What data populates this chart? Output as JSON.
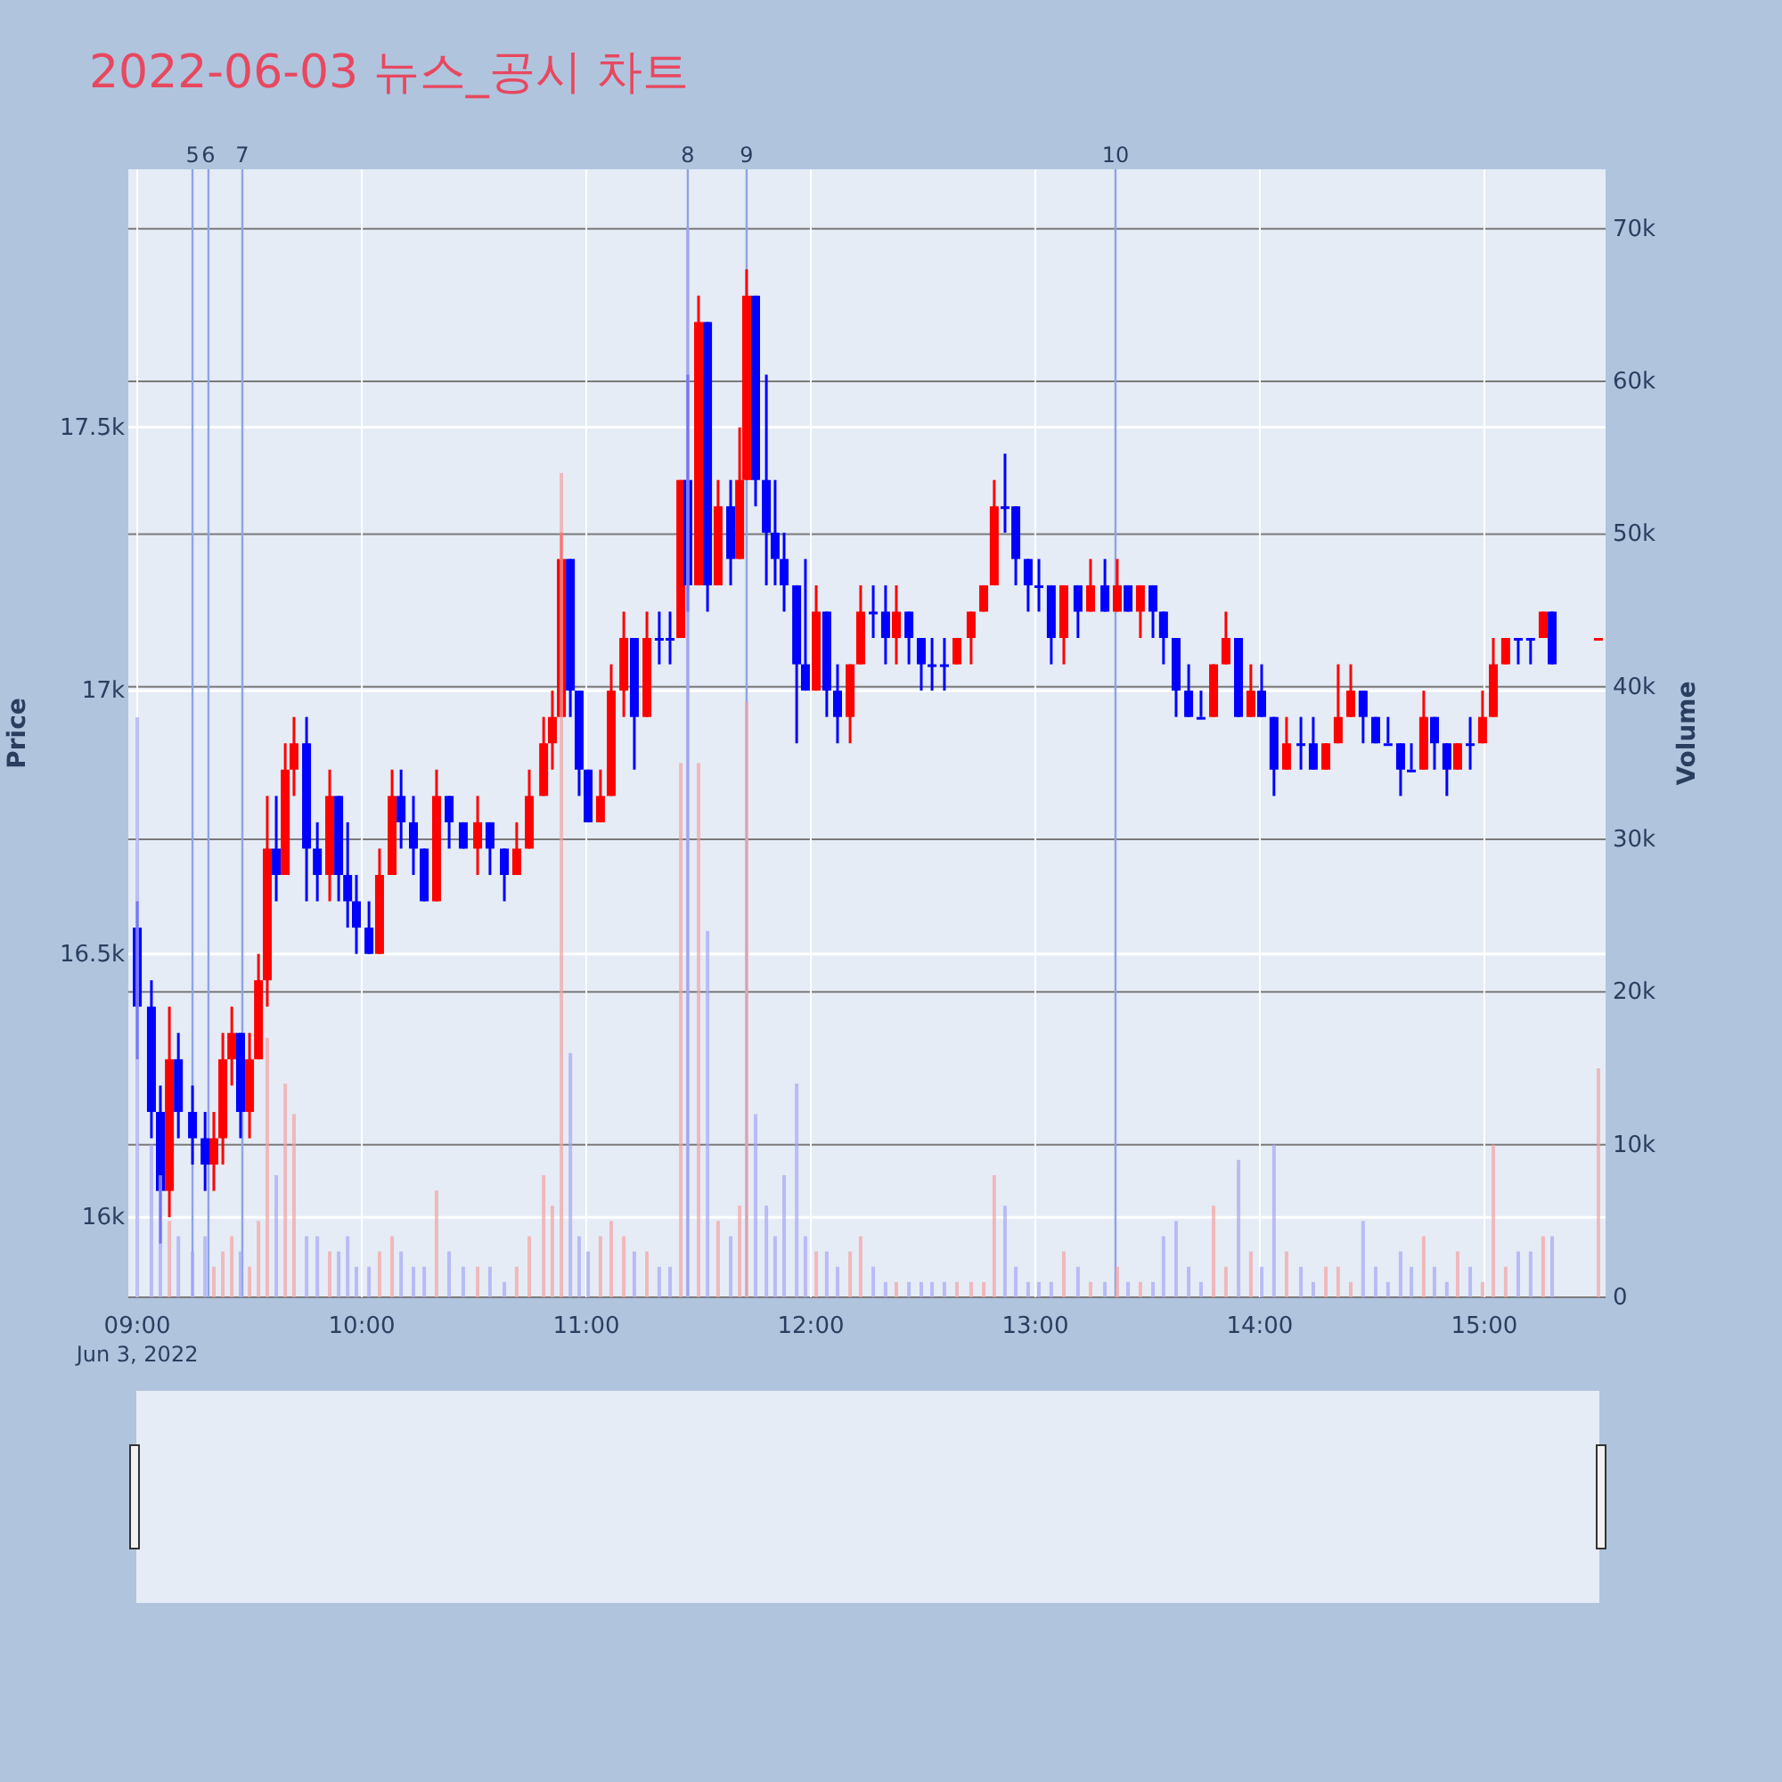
{
  "chart_data": {
    "type": "candlestick",
    "title": "2022-06-03 뉴스_공시 차트",
    "ylabel": "Price",
    "y2label": "Volume",
    "xlim": [
      8.96,
      15.54
    ],
    "xticks": [
      {
        "value": 9,
        "label": "09:00\nJun 3, 2022"
      },
      {
        "value": 10,
        "label": "10:00"
      },
      {
        "value": 11,
        "label": "11:00"
      },
      {
        "value": 12,
        "label": "12:00"
      },
      {
        "value": 13,
        "label": "13:00"
      },
      {
        "value": 14,
        "label": "14:00"
      },
      {
        "value": 15,
        "label": "15:00"
      }
    ],
    "ylim": [
      15848,
      17990
    ],
    "yticks": [
      {
        "value": 16000,
        "label": "16k"
      },
      {
        "value": 16500,
        "label": "16.5k"
      },
      {
        "value": 17000,
        "label": "17k"
      },
      {
        "value": 17500,
        "label": "17.5k"
      }
    ],
    "y2lim": [
      0,
      73900
    ],
    "y2ticks": [
      0,
      {
        "value": 10000,
        "label": "10k"
      },
      {
        "value": 20000,
        "label": "20k"
      },
      {
        "value": 30000,
        "label": "30k"
      },
      {
        "value": 40000,
        "label": "40k"
      },
      {
        "value": 50000,
        "label": "50k"
      },
      {
        "value": 60000,
        "label": "60k"
      },
      {
        "value": 70000,
        "label": "70k"
      }
    ],
    "grid": true,
    "ref_lines": [
      {
        "axis": "x",
        "value": 9.246,
        "color": "#8fa3e6"
      },
      {
        "axis": "x",
        "value": 9.317,
        "color": "#8fa3e6"
      },
      {
        "axis": "x",
        "value": 9.468,
        "color": "#8fa3e6"
      },
      {
        "axis": "x",
        "value": 11.452,
        "color": "#8fa3e6"
      },
      {
        "axis": "x",
        "value": 11.714,
        "color": "#8fa3e6"
      },
      {
        "axis": "x",
        "value": 13.357,
        "color": "#8fa3e6"
      }
    ],
    "annotations": [
      "5",
      "6",
      "7",
      "8",
      "9",
      "10"
    ],
    "series": [
      {
        "type": "bar",
        "axis": "y2",
        "color": "#f5a3a3",
        "x": [
          9.143,
          9.341,
          9.381,
          9.421,
          9.5,
          9.54,
          9.579,
          9.659,
          9.698,
          9.857,
          10.079,
          10.135,
          10.333,
          10.516,
          10.69,
          10.746,
          10.81,
          10.849,
          10.889,
          11.063,
          11.111,
          11.167,
          11.27,
          11.421,
          11.5,
          11.587,
          11.683,
          11.714,
          12.024,
          12.175,
          12.222,
          12.381,
          12.651,
          12.714,
          12.77,
          12.817,
          13.127,
          13.246,
          13.365,
          13.468,
          13.794,
          13.849,
          13.96,
          14.119,
          14.294,
          14.349,
          14.405,
          14.73,
          14.881,
          14.992,
          15.04,
          15.095,
          15.262,
          15.508
        ],
        "values": [
          5000,
          2000,
          3000,
          4000,
          2000,
          5000,
          17000,
          14000,
          12000,
          3000,
          3000,
          4000,
          7000,
          2000,
          2000,
          4000,
          8000,
          6000,
          54000,
          4000,
          5000,
          4000,
          3000,
          35000,
          35000,
          5000,
          6000,
          39000,
          3000,
          3000,
          4000,
          1000,
          1000,
          1000,
          1000,
          8000,
          3000,
          1000,
          2000,
          1000,
          6000,
          2000,
          3000,
          3000,
          2000,
          2000,
          1000,
          4000,
          3000,
          1000,
          10000,
          2000,
          4000,
          15000
        ]
      },
      {
        "type": "bar",
        "axis": "y2",
        "color": "#a6a6f5",
        "x": [
          9.0,
          9.063,
          9.103,
          9.183,
          9.246,
          9.302,
          9.46,
          9.619,
          9.754,
          9.802,
          9.897,
          9.937,
          9.976,
          10.032,
          10.175,
          10.23,
          10.278,
          10.389,
          10.452,
          10.571,
          10.635,
          10.929,
          10.968,
          11.008,
          11.214,
          11.325,
          11.373,
          11.452,
          11.54,
          11.643,
          11.754,
          11.802,
          11.841,
          11.881,
          11.937,
          11.976,
          12.071,
          12.119,
          12.278,
          12.333,
          12.437,
          12.492,
          12.54,
          12.595,
          12.865,
          12.913,
          12.968,
          13.016,
          13.071,
          13.19,
          13.31,
          13.413,
          13.524,
          13.571,
          13.627,
          13.683,
          13.738,
          13.905,
          14.008,
          14.063,
          14.183,
          14.238,
          14.46,
          14.516,
          14.571,
          14.627,
          14.675,
          14.778,
          14.833,
          14.937,
          15.151,
          15.206,
          15.302
        ],
        "values": [
          38000,
          10000,
          8000,
          4000,
          3000,
          4000,
          3000,
          8000,
          4000,
          4000,
          3000,
          4000,
          2000,
          2000,
          3000,
          2000,
          2000,
          3000,
          2000,
          2000,
          1000,
          16000,
          4000,
          3000,
          3000,
          2000,
          2000,
          70000,
          24000,
          4000,
          12000,
          6000,
          4000,
          8000,
          14000,
          4000,
          3000,
          2000,
          2000,
          1000,
          1000,
          1000,
          1000,
          1000,
          6000,
          2000,
          1000,
          1000,
          1000,
          2000,
          1000,
          1000,
          1000,
          4000,
          5000,
          2000,
          1000,
          9000,
          2000,
          10000,
          2000,
          1000,
          5000,
          2000,
          1000,
          3000,
          2000,
          2000,
          1000,
          2000,
          3000,
          3000,
          4000
        ]
      },
      {
        "type": "candlestick",
        "color": "#ff0000",
        "x": [
          9.143,
          9.341,
          9.381,
          9.421,
          9.5,
          9.54,
          9.579,
          9.659,
          9.698,
          9.857,
          10.079,
          10.135,
          10.333,
          10.516,
          10.69,
          10.746,
          10.81,
          10.849,
          10.889,
          11.063,
          11.111,
          11.167,
          11.27,
          11.421,
          11.5,
          11.587,
          11.683,
          11.714,
          12.024,
          12.175,
          12.222,
          12.381,
          12.651,
          12.714,
          12.77,
          12.817,
          13.127,
          13.246,
          13.365,
          13.468,
          13.794,
          13.849,
          13.96,
          14.119,
          14.294,
          14.349,
          14.405,
          14.73,
          14.881,
          14.992,
          15.04,
          15.095,
          15.262,
          15.508
        ],
        "ohlc": [
          [
            16050,
            16400,
            16000,
            16300
          ],
          [
            16100,
            16200,
            16050,
            16150
          ],
          [
            16150,
            16350,
            16100,
            16300
          ],
          [
            16300,
            16400,
            16250,
            16350
          ],
          [
            16200,
            16350,
            16150,
            16300
          ],
          [
            16300,
            16500,
            16300,
            16450
          ],
          [
            16450,
            16800,
            16400,
            16700
          ],
          [
            16650,
            16900,
            16650,
            16850
          ],
          [
            16850,
            16950,
            16800,
            16900
          ],
          [
            16650,
            16850,
            16600,
            16800
          ],
          [
            16500,
            16700,
            16500,
            16650
          ],
          [
            16650,
            16850,
            16650,
            16800
          ],
          [
            16600,
            16850,
            16600,
            16800
          ],
          [
            16700,
            16800,
            16650,
            16750
          ],
          [
            16650,
            16750,
            16650,
            16700
          ],
          [
            16700,
            16850,
            16700,
            16800
          ],
          [
            16800,
            16950,
            16800,
            16900
          ],
          [
            16900,
            17000,
            16850,
            16950
          ],
          [
            16950,
            17300,
            16950,
            17250
          ],
          [
            16750,
            16850,
            16750,
            16800
          ],
          [
            16800,
            17050,
            16800,
            17000
          ],
          [
            17000,
            17150,
            16950,
            17100
          ],
          [
            16950,
            17150,
            16950,
            17100
          ],
          [
            17100,
            17400,
            17100,
            17400
          ],
          [
            17200,
            17750,
            17200,
            17700
          ],
          [
            17200,
            17400,
            17200,
            17350
          ],
          [
            17250,
            17500,
            17250,
            17400
          ],
          [
            17400,
            17800,
            17400,
            17750
          ],
          [
            17000,
            17200,
            17000,
            17150
          ],
          [
            16950,
            17050,
            16900,
            17050
          ],
          [
            17050,
            17200,
            17050,
            17150
          ],
          [
            17100,
            17200,
            17050,
            17150
          ],
          [
            17050,
            17100,
            17050,
            17100
          ],
          [
            17100,
            17150,
            17050,
            17150
          ],
          [
            17150,
            17200,
            17150,
            17200
          ],
          [
            17200,
            17400,
            17200,
            17350
          ],
          [
            17100,
            17200,
            17050,
            17200
          ],
          [
            17150,
            17250,
            17150,
            17200
          ],
          [
            17150,
            17250,
            17150,
            17200
          ],
          [
            17150,
            17200,
            17100,
            17200
          ],
          [
            16950,
            17050,
            16950,
            17050
          ],
          [
            17050,
            17150,
            17050,
            17100
          ],
          [
            16950,
            17050,
            16950,
            17000
          ],
          [
            16850,
            16950,
            16850,
            16900
          ],
          [
            16850,
            16900,
            16850,
            16900
          ],
          [
            16900,
            17050,
            16900,
            16950
          ],
          [
            16950,
            17050,
            16950,
            17000
          ],
          [
            16850,
            17000,
            16850,
            16950
          ],
          [
            16850,
            16900,
            16850,
            16900
          ],
          [
            16900,
            17000,
            16900,
            16950
          ],
          [
            16950,
            17100,
            16950,
            17050
          ],
          [
            17050,
            17100,
            17050,
            17100
          ],
          [
            17100,
            17150,
            17100,
            17150
          ],
          [
            17100,
            17100,
            17100,
            17100
          ]
        ]
      },
      {
        "type": "candlestick",
        "color": "#0000ff",
        "x": [
          9.0,
          9.063,
          9.103,
          9.183,
          9.246,
          9.302,
          9.46,
          9.619,
          9.754,
          9.802,
          9.897,
          9.937,
          9.976,
          10.032,
          10.175,
          10.23,
          10.278,
          10.389,
          10.452,
          10.571,
          10.635,
          10.929,
          10.968,
          11.008,
          11.214,
          11.325,
          11.373,
          11.452,
          11.54,
          11.643,
          11.754,
          11.802,
          11.841,
          11.881,
          11.937,
          11.976,
          12.071,
          12.119,
          12.278,
          12.333,
          12.437,
          12.492,
          12.54,
          12.595,
          12.865,
          12.913,
          12.968,
          13.016,
          13.071,
          13.19,
          13.31,
          13.413,
          13.524,
          13.571,
          13.627,
          13.683,
          13.738,
          13.905,
          14.008,
          14.063,
          14.183,
          14.238,
          14.46,
          14.516,
          14.571,
          14.627,
          14.675,
          14.778,
          14.833,
          14.937,
          15.151,
          15.206,
          15.302
        ],
        "ohlc": [
          [
            16550,
            16600,
            16300,
            16400
          ],
          [
            16400,
            16450,
            16150,
            16200
          ],
          [
            16200,
            16250,
            15950,
            16050
          ],
          [
            16300,
            16350,
            16150,
            16200
          ],
          [
            16200,
            16250,
            16100,
            16150
          ],
          [
            16150,
            16200,
            16050,
            16100
          ],
          [
            16350,
            16350,
            16150,
            16200
          ],
          [
            16700,
            16800,
            16600,
            16650
          ],
          [
            16900,
            16950,
            16600,
            16700
          ],
          [
            16700,
            16750,
            16600,
            16650
          ],
          [
            16800,
            16800,
            16600,
            16650
          ],
          [
            16650,
            16750,
            16550,
            16600
          ],
          [
            16600,
            16650,
            16500,
            16550
          ],
          [
            16550,
            16600,
            16500,
            16500
          ],
          [
            16800,
            16850,
            16700,
            16750
          ],
          [
            16750,
            16800,
            16650,
            16700
          ],
          [
            16700,
            16700,
            16600,
            16600
          ],
          [
            16800,
            16800,
            16700,
            16750
          ],
          [
            16750,
            16750,
            16700,
            16700
          ],
          [
            16750,
            16750,
            16650,
            16700
          ],
          [
            16700,
            16700,
            16600,
            16650
          ],
          [
            17250,
            17250,
            16950,
            17000
          ],
          [
            17000,
            17000,
            16800,
            16850
          ],
          [
            16850,
            16850,
            16750,
            16750
          ],
          [
            17100,
            17100,
            16850,
            16950
          ],
          [
            17100,
            17150,
            17050,
            17100
          ],
          [
            17100,
            17150,
            17050,
            17100
          ],
          [
            17400,
            17600,
            17150,
            17200
          ],
          [
            17700,
            17700,
            17150,
            17200
          ],
          [
            17350,
            17400,
            17200,
            17250
          ],
          [
            17750,
            17750,
            17350,
            17400
          ],
          [
            17400,
            17600,
            17200,
            17300
          ],
          [
            17300,
            17400,
            17200,
            17250
          ],
          [
            17250,
            17300,
            17150,
            17200
          ],
          [
            17200,
            17200,
            16900,
            17050
          ],
          [
            17050,
            17250,
            17000,
            17000
          ],
          [
            17150,
            17150,
            16950,
            17000
          ],
          [
            17000,
            17050,
            16900,
            16950
          ],
          [
            17150,
            17200,
            17100,
            17150
          ],
          [
            17150,
            17200,
            17050,
            17100
          ],
          [
            17150,
            17150,
            17050,
            17100
          ],
          [
            17100,
            17100,
            17000,
            17050
          ],
          [
            17050,
            17100,
            17000,
            17050
          ],
          [
            17050,
            17100,
            17000,
            17050
          ],
          [
            17350,
            17450,
            17300,
            17350
          ],
          [
            17350,
            17350,
            17200,
            17250
          ],
          [
            17250,
            17250,
            17150,
            17200
          ],
          [
            17200,
            17250,
            17150,
            17200
          ],
          [
            17200,
            17200,
            17050,
            17100
          ],
          [
            17200,
            17200,
            17100,
            17150
          ],
          [
            17200,
            17250,
            17150,
            17150
          ],
          [
            17200,
            17200,
            17150,
            17150
          ],
          [
            17200,
            17200,
            17100,
            17150
          ],
          [
            17150,
            17150,
            17050,
            17100
          ],
          [
            17100,
            17100,
            16950,
            17000
          ],
          [
            17000,
            17050,
            16950,
            16950
          ],
          [
            16950,
            17000,
            16950,
            16950
          ],
          [
            17100,
            17100,
            16950,
            16950
          ],
          [
            17000,
            17050,
            16950,
            16950
          ],
          [
            16950,
            16950,
            16800,
            16850
          ],
          [
            16900,
            16950,
            16850,
            16900
          ],
          [
            16900,
            16950,
            16850,
            16850
          ],
          [
            17000,
            17000,
            16900,
            16950
          ],
          [
            16950,
            16950,
            16900,
            16900
          ],
          [
            16900,
            16950,
            16900,
            16900
          ],
          [
            16900,
            16900,
            16800,
            16850
          ],
          [
            16850,
            16900,
            16850,
            16850
          ],
          [
            16950,
            16950,
            16850,
            16900
          ],
          [
            16900,
            16900,
            16800,
            16850
          ],
          [
            16900,
            16950,
            16850,
            16900
          ],
          [
            17100,
            17100,
            17050,
            17100
          ],
          [
            17100,
            17100,
            17050,
            17100
          ],
          [
            17150,
            17150,
            17050,
            17050
          ]
        ]
      }
    ]
  }
}
